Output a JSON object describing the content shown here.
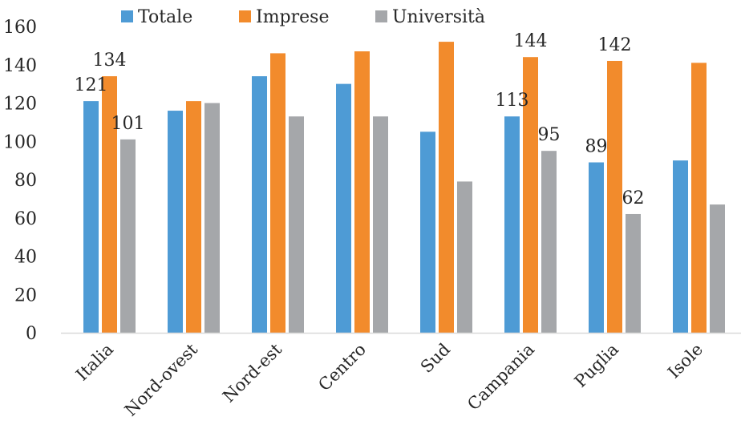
{
  "chart_data": {
    "type": "bar",
    "categories": [
      "Italia",
      "Nord-ovest",
      "Nord-est",
      "Centro",
      "Sud",
      "Campania",
      "Puglia",
      "Isole"
    ],
    "series": [
      {
        "name": "Totale",
        "color": "#4e9bd5",
        "values": [
          121,
          116,
          134,
          130,
          105,
          113,
          89,
          90
        ]
      },
      {
        "name": "Imprese",
        "color": "#f28b2c",
        "values": [
          134,
          121,
          146,
          147,
          152,
          144,
          142,
          141
        ]
      },
      {
        "name": "Università",
        "color": "#a5a7aa",
        "values": [
          101,
          120,
          113,
          113,
          79,
          95,
          62,
          67
        ]
      }
    ],
    "data_labels": [
      {
        "series": 0,
        "category": 0,
        "text": "121"
      },
      {
        "series": 1,
        "category": 0,
        "text": "134"
      },
      {
        "series": 2,
        "category": 0,
        "text": "101"
      },
      {
        "series": 0,
        "category": 5,
        "text": "113"
      },
      {
        "series": 1,
        "category": 5,
        "text": "144"
      },
      {
        "series": 2,
        "category": 5,
        "text": "95"
      },
      {
        "series": 0,
        "category": 6,
        "text": "89"
      },
      {
        "series": 1,
        "category": 6,
        "text": "142"
      },
      {
        "series": 2,
        "category": 6,
        "text": "62"
      }
    ],
    "yticks": [
      "0",
      "20",
      "40",
      "60",
      "80",
      "100",
      "120",
      "140",
      "160"
    ],
    "ylim": [
      0,
      160
    ],
    "xlabel": "",
    "ylabel": "",
    "grid": false,
    "legend_position": "top"
  }
}
